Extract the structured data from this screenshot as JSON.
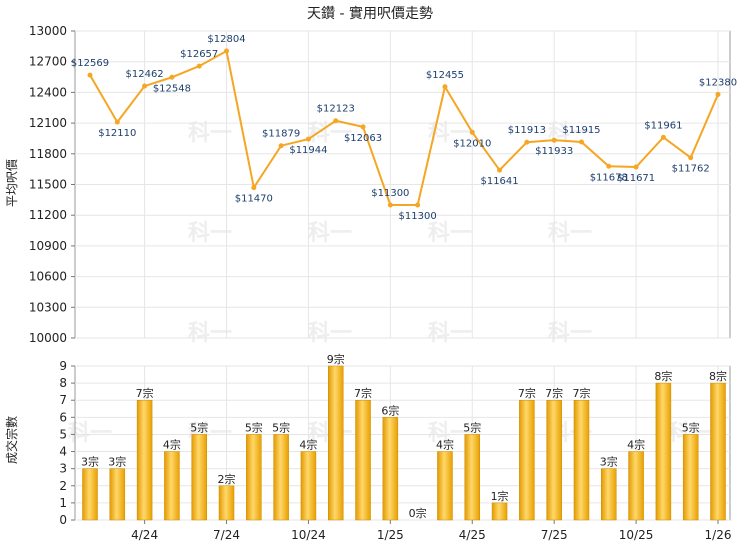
{
  "chart_data": [
    {
      "type": "line",
      "title": "天鑽 - 實用呎價走勢",
      "ylabel": "平均呎價",
      "ylim": [
        10000,
        13000
      ],
      "yticks": [
        10000,
        10300,
        10600,
        10900,
        11200,
        11500,
        11800,
        12100,
        12400,
        12700,
        13000
      ],
      "grid": true,
      "color": "#f5a623",
      "points": [
        {
          "value": 12569,
          "label": "$12569"
        },
        {
          "value": 12110,
          "label": "$12110"
        },
        {
          "value": 12462,
          "label": "$12462"
        },
        {
          "value": 12548,
          "label": "$12548"
        },
        {
          "value": 12657,
          "label": "$12657"
        },
        {
          "value": 12804,
          "label": "$12804"
        },
        {
          "value": 11470,
          "label": "$11470"
        },
        {
          "value": 11879,
          "label": "$11879"
        },
        {
          "value": 11944,
          "label": "$11944"
        },
        {
          "value": 12123,
          "label": "$12123"
        },
        {
          "value": 12063,
          "label": "$12063"
        },
        {
          "value": 11300,
          "label": "$11300"
        },
        {
          "value": 11300,
          "label": "$11300"
        },
        {
          "value": 12455,
          "label": "$12455"
        },
        {
          "value": 12010,
          "label": "$12010"
        },
        {
          "value": 11641,
          "label": "$11641"
        },
        {
          "value": 11913,
          "label": "$11913"
        },
        {
          "value": 11933,
          "label": "$11933"
        },
        {
          "value": 11915,
          "label": "$11915"
        },
        {
          "value": 11678,
          "label": "$11678"
        },
        {
          "value": 11671,
          "label": "$11671"
        },
        {
          "value": 11961,
          "label": "$11961"
        },
        {
          "value": 11762,
          "label": "$11762"
        },
        {
          "value": 12380,
          "label": "$12380"
        }
      ]
    },
    {
      "type": "bar",
      "ylabel": "成交宗數",
      "ylim": [
        0,
        9
      ],
      "yticks": [
        0,
        1,
        2,
        3,
        4,
        5,
        6,
        7,
        8,
        9
      ],
      "grid": true,
      "color": "#f0a800",
      "x_tick_labels": [
        "4/24",
        "7/24",
        "10/24",
        "1/25",
        "4/25",
        "7/25",
        "10/25",
        "1/26"
      ],
      "bars": [
        {
          "value": 3,
          "label": "3宗"
        },
        {
          "value": 3,
          "label": "3宗"
        },
        {
          "value": 7,
          "label": "7宗"
        },
        {
          "value": 4,
          "label": "4宗"
        },
        {
          "value": 5,
          "label": "5宗"
        },
        {
          "value": 2,
          "label": "2宗"
        },
        {
          "value": 5,
          "label": "5宗"
        },
        {
          "value": 5,
          "label": "5宗"
        },
        {
          "value": 4,
          "label": "4宗"
        },
        {
          "value": 9,
          "label": "9宗"
        },
        {
          "value": 7,
          "label": "7宗"
        },
        {
          "value": 6,
          "label": "6宗"
        },
        {
          "value": 0,
          "label": "0宗"
        },
        {
          "value": 4,
          "label": "4宗"
        },
        {
          "value": 5,
          "label": "5宗"
        },
        {
          "value": 1,
          "label": "1宗"
        },
        {
          "value": 7,
          "label": "7宗"
        },
        {
          "value": 7,
          "label": "7宗"
        },
        {
          "value": 7,
          "label": "7宗"
        },
        {
          "value": 3,
          "label": "3宗"
        },
        {
          "value": 4,
          "label": "4宗"
        },
        {
          "value": 8,
          "label": "8宗"
        },
        {
          "value": 5,
          "label": "5宗"
        },
        {
          "value": 8,
          "label": "8宗"
        }
      ]
    }
  ],
  "watermark": "科一"
}
